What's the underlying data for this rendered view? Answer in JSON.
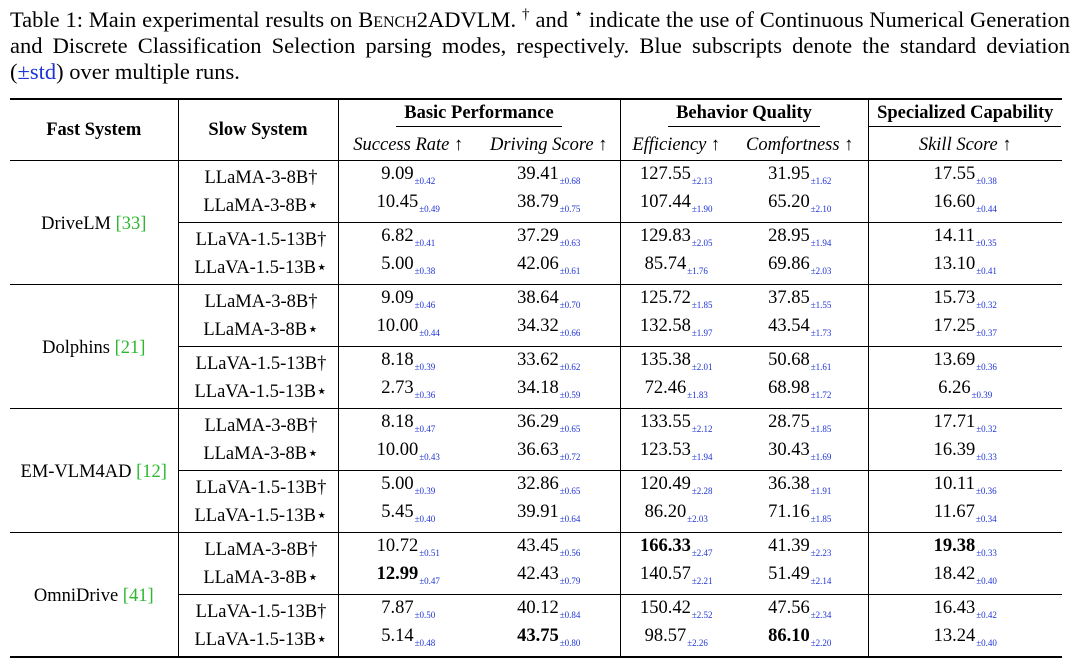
{
  "caption": {
    "label": "Table 1:",
    "text_a": " Main experimental results on ",
    "bench": "Bench2ADVLM",
    "text_b": ". ",
    "dagger": "†",
    "text_c": " and ",
    "star": "⋆",
    "text_d": " indicate the use of Continuous Numerical Generation and Discrete Classification Selection parsing modes, respectively. Blue subscripts denote the standard deviation (",
    "std": "±std",
    "text_e": ") over multiple runs."
  },
  "header": {
    "fast": "Fast System",
    "slow": "Slow System",
    "group1": "Basic Performance",
    "group2": "Behavior Quality",
    "group3": "Specialized Capability",
    "cols": [
      "Success Rate ↑",
      "Driving Score ↑",
      "Efficiency ↑",
      "Comfortness ↑",
      "Skill Score ↑"
    ]
  },
  "groups": [
    {
      "fast": "DriveLM",
      "ref": "33",
      "rows": [
        {
          "slow": "LLaMA-3-8B†",
          "v": [
            [
              "9.09",
              "±0.42"
            ],
            [
              "39.41",
              "±0.68"
            ],
            [
              "127.55",
              "±2.13"
            ],
            [
              "31.95",
              "±1.62"
            ],
            [
              "17.55",
              "±0.38"
            ]
          ]
        },
        {
          "slow": "LLaMA-3-8B⋆",
          "v": [
            [
              "10.45",
              "±0.49"
            ],
            [
              "38.79",
              "±0.75"
            ],
            [
              "107.44",
              "±1.90"
            ],
            [
              "65.20",
              "±2.10"
            ],
            [
              "16.60",
              "±0.44"
            ]
          ]
        },
        {
          "slow": "LLaVA-1.5-13B†",
          "v": [
            [
              "6.82",
              "±0.41"
            ],
            [
              "37.29",
              "±0.63"
            ],
            [
              "129.83",
              "±2.05"
            ],
            [
              "28.95",
              "±1.94"
            ],
            [
              "14.11",
              "±0.35"
            ]
          ]
        },
        {
          "slow": "LLaVA-1.5-13B⋆",
          "v": [
            [
              "5.00",
              "±0.38"
            ],
            [
              "42.06",
              "±0.61"
            ],
            [
              "85.74",
              "±1.76"
            ],
            [
              "69.86",
              "±2.03"
            ],
            [
              "13.10",
              "±0.41"
            ]
          ]
        }
      ]
    },
    {
      "fast": "Dolphins",
      "ref": "21",
      "rows": [
        {
          "slow": "LLaMA-3-8B†",
          "v": [
            [
              "9.09",
              "±0.46"
            ],
            [
              "38.64",
              "±0.70"
            ],
            [
              "125.72",
              "±1.85"
            ],
            [
              "37.85",
              "±1.55"
            ],
            [
              "15.73",
              "±0.32"
            ]
          ]
        },
        {
          "slow": "LLaMA-3-8B⋆",
          "v": [
            [
              "10.00",
              "±0.44"
            ],
            [
              "34.32",
              "±0.66"
            ],
            [
              "132.58",
              "±1.97"
            ],
            [
              "43.54",
              "±1.73"
            ],
            [
              "17.25",
              "±0.37"
            ]
          ]
        },
        {
          "slow": "LLaVA-1.5-13B†",
          "v": [
            [
              "8.18",
              "±0.39"
            ],
            [
              "33.62",
              "±0.62"
            ],
            [
              "135.38",
              "±2.01"
            ],
            [
              "50.68",
              "±1.61"
            ],
            [
              "13.69",
              "±0.36"
            ]
          ]
        },
        {
          "slow": "LLaVA-1.5-13B⋆",
          "v": [
            [
              "2.73",
              "±0.36"
            ],
            [
              "34.18",
              "±0.59"
            ],
            [
              "72.46",
              "±1.83"
            ],
            [
              "68.98",
              "±1.72"
            ],
            [
              "6.26",
              "±0.39"
            ]
          ]
        }
      ]
    },
    {
      "fast": "EM-VLM4AD",
      "ref": "12",
      "rows": [
        {
          "slow": "LLaMA-3-8B†",
          "v": [
            [
              "8.18",
              "±0.47"
            ],
            [
              "36.29",
              "±0.65"
            ],
            [
              "133.55",
              "±2.12"
            ],
            [
              "28.75",
              "±1.85"
            ],
            [
              "17.71",
              "±0.32"
            ]
          ]
        },
        {
          "slow": "LLaMA-3-8B⋆",
          "v": [
            [
              "10.00",
              "±0.43"
            ],
            [
              "36.63",
              "±0.72"
            ],
            [
              "123.53",
              "±1.94"
            ],
            [
              "30.43",
              "±1.69"
            ],
            [
              "16.39",
              "±0.33"
            ]
          ]
        },
        {
          "slow": "LLaVA-1.5-13B†",
          "v": [
            [
              "5.00",
              "±0.39"
            ],
            [
              "32.86",
              "±0.65"
            ],
            [
              "120.49",
              "±2.28"
            ],
            [
              "36.38",
              "±1.91"
            ],
            [
              "10.11",
              "±0.36"
            ]
          ]
        },
        {
          "slow": "LLaVA-1.5-13B⋆",
          "v": [
            [
              "5.45",
              "±0.40"
            ],
            [
              "39.91",
              "±0.64"
            ],
            [
              "86.20",
              "±2.03"
            ],
            [
              "71.16",
              "±1.85"
            ],
            [
              "11.67",
              "±0.34"
            ]
          ]
        }
      ]
    },
    {
      "fast": "OmniDrive",
      "ref": "41",
      "rows": [
        {
          "slow": "LLaMA-3-8B†",
          "v": [
            [
              "10.72",
              "±0.51"
            ],
            [
              "43.45",
              "±0.56"
            ],
            [
              "166.33",
              "±2.47"
            ],
            [
              "41.39",
              "±2.23"
            ],
            [
              "19.38",
              "±0.33"
            ]
          ],
          "bold": [
            2,
            4
          ]
        },
        {
          "slow": "LLaMA-3-8B⋆",
          "v": [
            [
              "12.99",
              "±0.47"
            ],
            [
              "42.43",
              "±0.79"
            ],
            [
              "140.57",
              "±2.21"
            ],
            [
              "51.49",
              "±2.14"
            ],
            [
              "18.42",
              "±0.40"
            ]
          ],
          "bold": [
            0
          ]
        },
        {
          "slow": "LLaVA-1.5-13B†",
          "v": [
            [
              "7.87",
              "±0.50"
            ],
            [
              "40.12",
              "±0.84"
            ],
            [
              "150.42",
              "±2.52"
            ],
            [
              "47.56",
              "±2.34"
            ],
            [
              "16.43",
              "±0.42"
            ]
          ]
        },
        {
          "slow": "LLaVA-1.5-13B⋆",
          "v": [
            [
              "5.14",
              "±0.48"
            ],
            [
              "43.75",
              "±0.80"
            ],
            [
              "98.57",
              "±2.26"
            ],
            [
              "86.10",
              "±2.20"
            ],
            [
              "13.24",
              "±0.40"
            ]
          ],
          "bold": [
            1,
            3
          ]
        }
      ]
    }
  ]
}
